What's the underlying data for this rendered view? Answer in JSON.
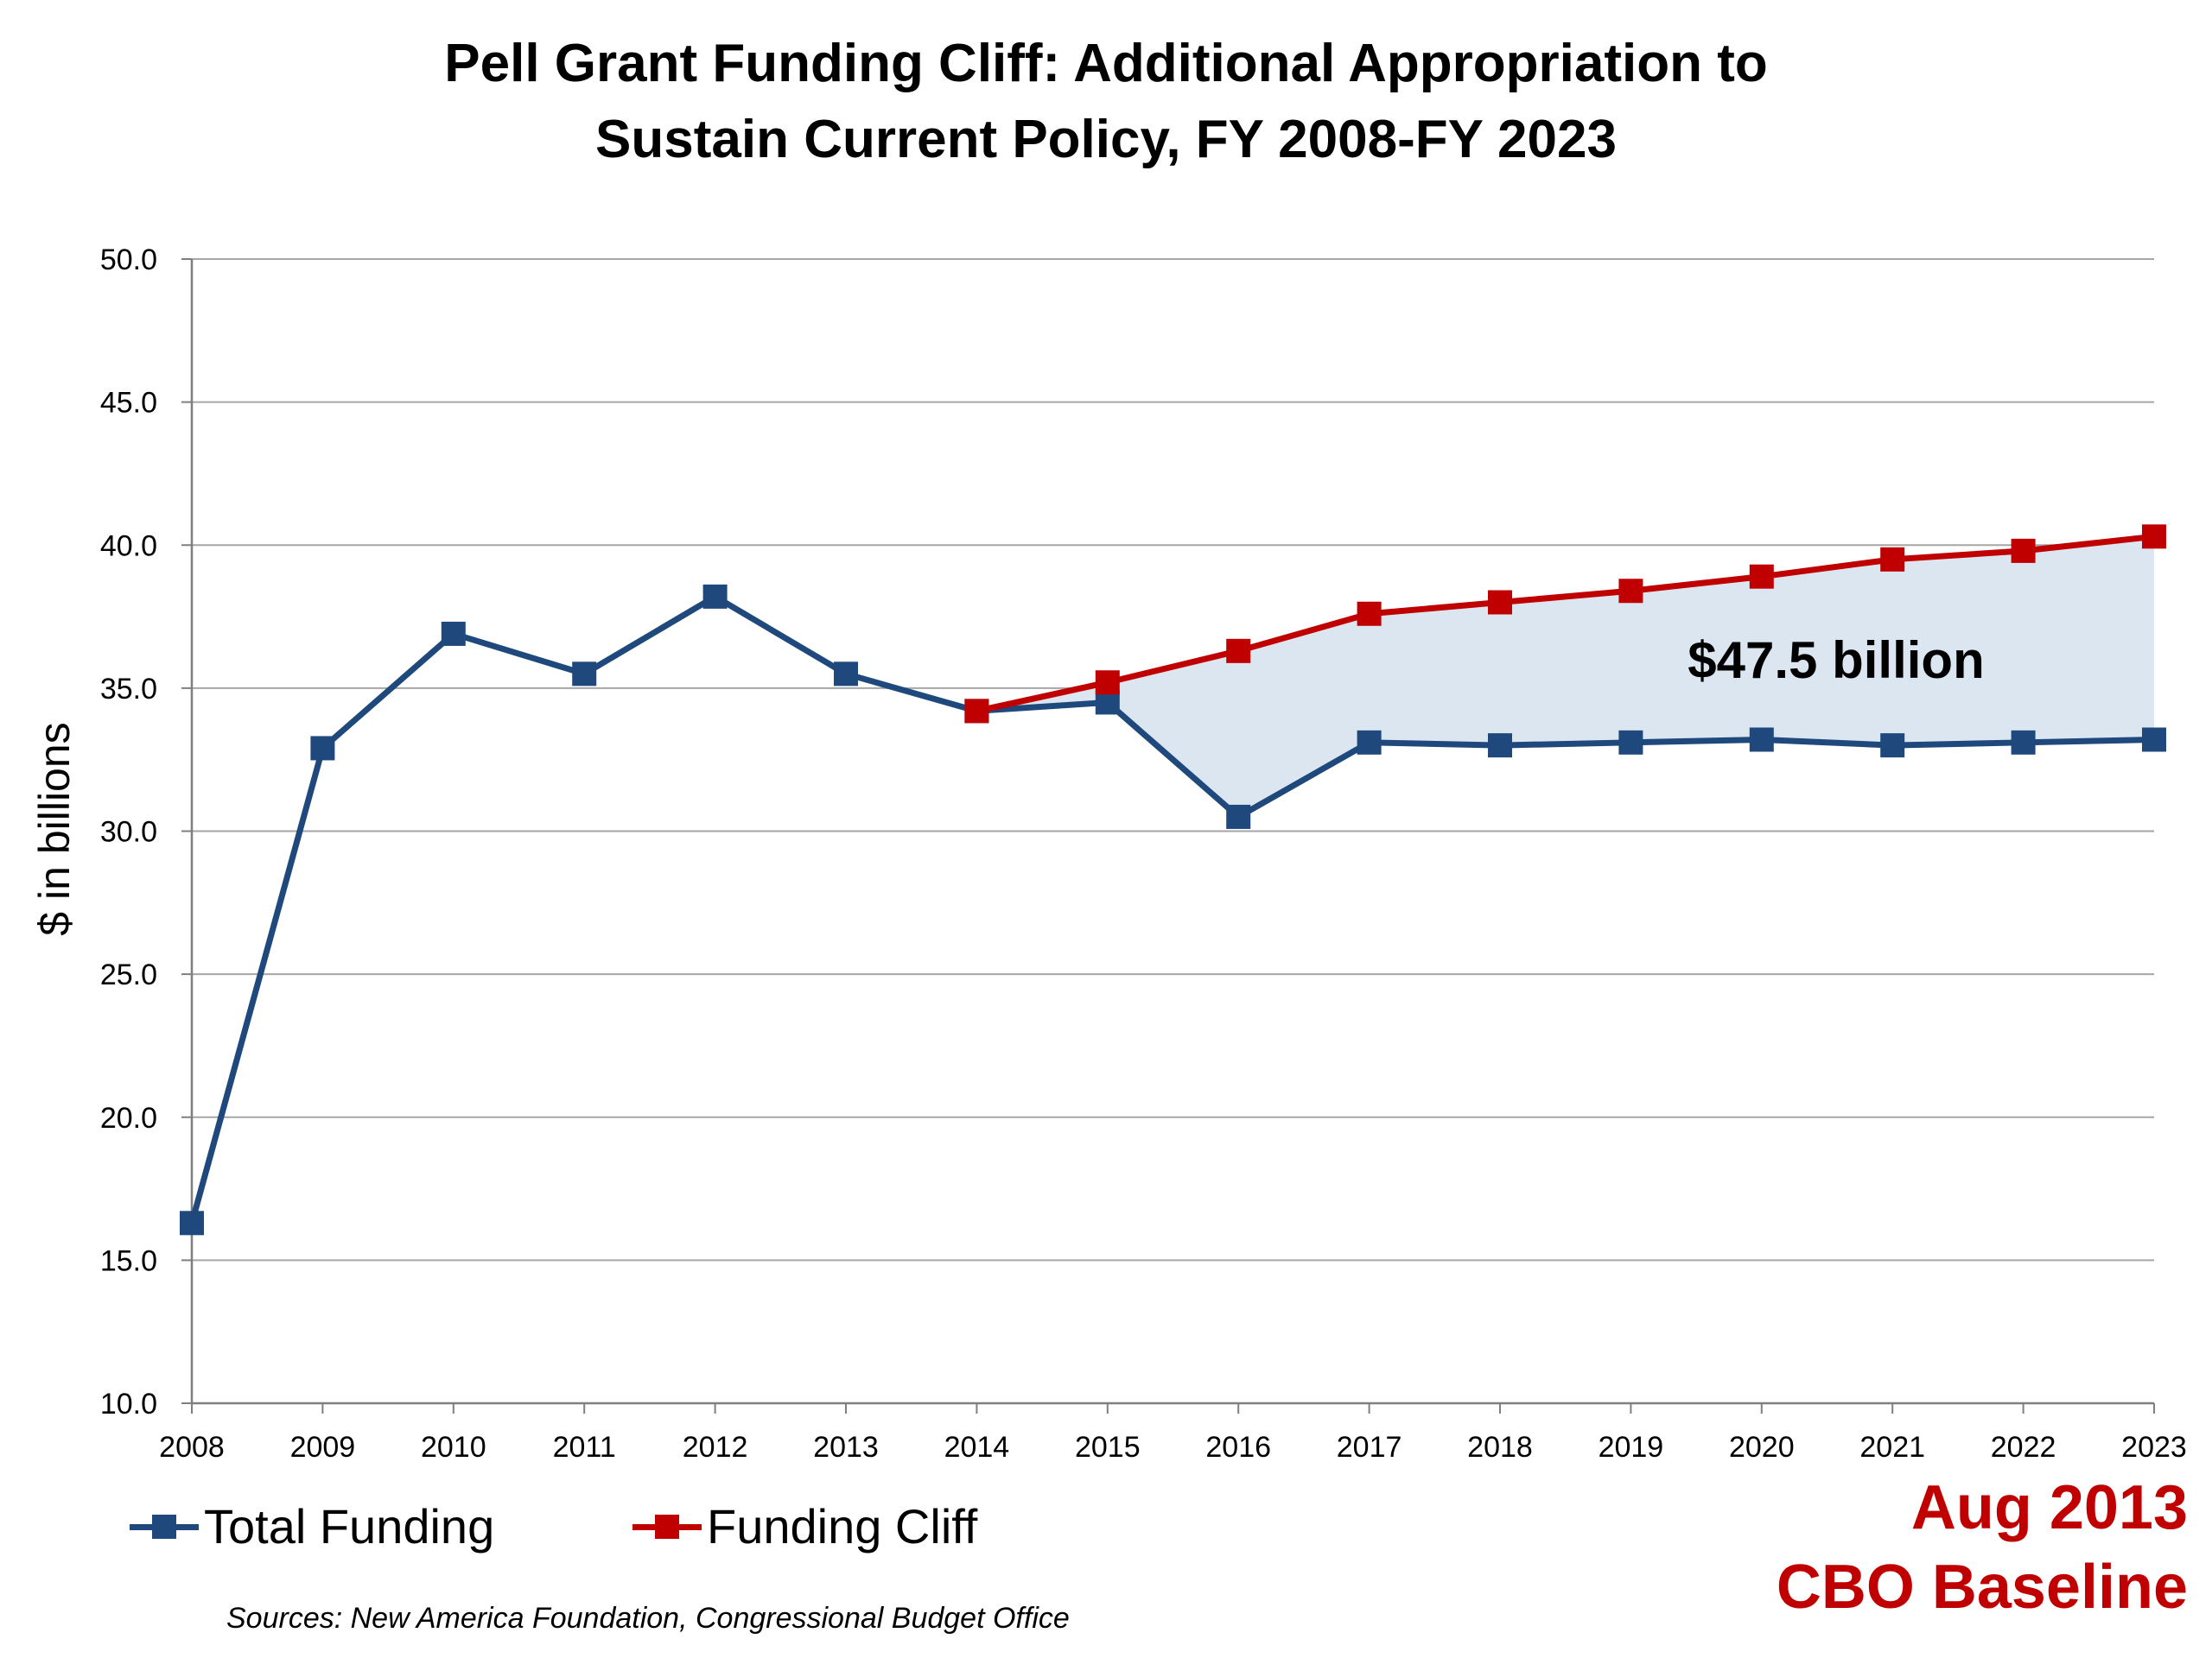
{
  "chart_data": {
    "type": "line",
    "title_lines": [
      "Pell Grant Funding Cliff: Additional Appropriation to",
      "Sustain Current Policy, FY 2008-FY 2023"
    ],
    "ylabel": "$ in billions",
    "xlabel": "",
    "ylim": [
      10.0,
      50.0
    ],
    "y_ticks": [
      "10.0",
      "15.0",
      "20.0",
      "25.0",
      "30.0",
      "35.0",
      "40.0",
      "45.0",
      "50.0"
    ],
    "x": [
      "2008",
      "2009",
      "2010",
      "2011",
      "2012",
      "2013",
      "2014",
      "2015",
      "2016",
      "2017",
      "2018",
      "2019",
      "2020",
      "2021",
      "2022",
      "2023"
    ],
    "grid": "horizontal",
    "legend_position": "bottom-left",
    "series": [
      {
        "name": "Total Funding",
        "color": "#1f497d",
        "x": [
          "2008",
          "2009",
          "2010",
          "2011",
          "2012",
          "2013",
          "2014",
          "2015",
          "2016",
          "2017",
          "2018",
          "2019",
          "2020",
          "2021",
          "2022",
          "2023"
        ],
        "values": [
          16.3,
          32.9,
          36.9,
          35.5,
          38.2,
          35.5,
          34.2,
          34.5,
          30.5,
          33.1,
          33.0,
          33.1,
          33.2,
          33.0,
          33.1,
          33.2
        ]
      },
      {
        "name": "Funding Cliff",
        "color": "#c00000",
        "x": [
          "2014",
          "2015",
          "2016",
          "2017",
          "2018",
          "2019",
          "2020",
          "2021",
          "2022",
          "2023"
        ],
        "values": [
          34.2,
          35.2,
          36.3,
          37.6,
          38.0,
          38.4,
          38.9,
          39.5,
          39.8,
          40.3
        ]
      }
    ],
    "gap_fill_color": "#dce6f1",
    "annotation": "$47.5 billion"
  },
  "baseline_label": [
    "Aug 2013",
    "CBO Baseline"
  ],
  "sources": "Sources: New America Foundation, Congressional Budget Office",
  "colors": {
    "axis": "#7f7f7f",
    "grid": "#a6a6a6",
    "baseline_text": "#c00000"
  }
}
